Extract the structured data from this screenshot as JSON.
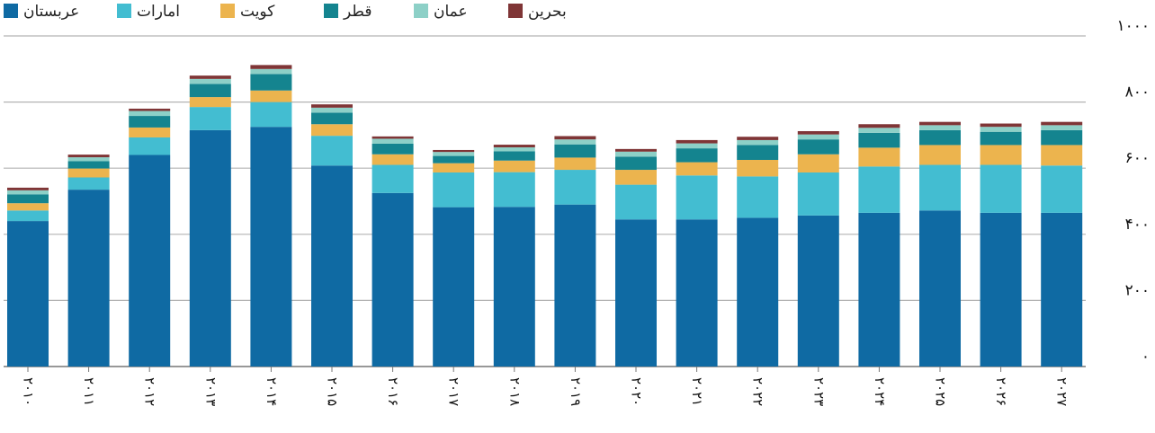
{
  "chart_data": {
    "type": "bar",
    "stacked": true,
    "categories": [
      "۲۰۱۰",
      "۲۰۱۱",
      "۲۰۱۲",
      "۲۰۱۳",
      "۲۰۱۴",
      "۲۰۱۵",
      "۲۰۱۶",
      "۲۰۱۷",
      "۲۰۱۸",
      "۲۰۱۹",
      "۲۰۲۰",
      "۲۰۲۱",
      "۲۰۲۲",
      "۲۰۲۳",
      "۲۰۲۴",
      "۲۰۲۵",
      "۲۰۲۶",
      "۲۰۲۷"
    ],
    "y_ticks": [
      "۰",
      "۲۰۰",
      "۴۰۰",
      "۶۰۰",
      "۸۰۰",
      "۱۰۰۰"
    ],
    "ylim": [
      0,
      1000
    ],
    "grid": true,
    "legend_position": "top",
    "series": [
      {
        "name": "عربستان",
        "color": "#0f6aa3",
        "values": [
          440,
          535,
          640,
          715,
          725,
          608,
          525,
          482,
          483,
          490,
          445,
          445,
          450,
          457,
          465,
          472,
          465,
          465
        ]
      },
      {
        "name": "امارات",
        "color": "#43bdd1",
        "values": [
          32,
          37,
          53,
          70,
          75,
          90,
          85,
          105,
          105,
          105,
          105,
          133,
          125,
          130,
          140,
          138,
          145,
          143
        ]
      },
      {
        "name": "کویت",
        "color": "#ecb44e",
        "values": [
          22,
          27,
          30,
          30,
          35,
          35,
          32,
          28,
          35,
          37,
          45,
          40,
          50,
          55,
          57,
          60,
          60,
          62
        ]
      },
      {
        "name": "قطر",
        "color": "#14848f",
        "values": [
          27,
          22,
          35,
          40,
          50,
          35,
          32,
          22,
          28,
          40,
          40,
          42,
          45,
          45,
          45,
          45,
          40,
          45
        ]
      },
      {
        "name": "عمان",
        "color": "#8dd0c7",
        "values": [
          12,
          12,
          15,
          15,
          15,
          15,
          15,
          12,
          12,
          15,
          15,
          15,
          15,
          15,
          15,
          15,
          15,
          15
        ]
      },
      {
        "name": "بحرین",
        "color": "#7f3536",
        "values": [
          8,
          8,
          7,
          10,
          12,
          10,
          7,
          6,
          8,
          10,
          8,
          10,
          10,
          10,
          11,
          10,
          10,
          10
        ]
      }
    ]
  }
}
